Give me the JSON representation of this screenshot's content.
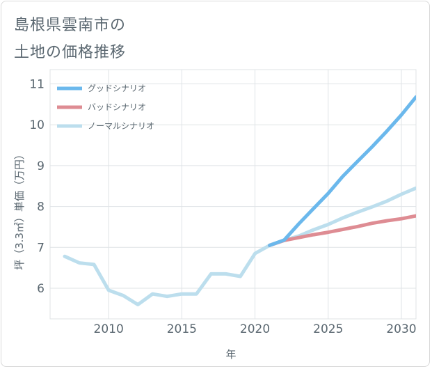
{
  "header": {
    "title_line1": "島根県雲南市の",
    "title_line2": "土地の価格推移"
  },
  "chart_data": {
    "type": "line",
    "title": "島根県雲南市の土地の価格推移",
    "xlabel": "年",
    "ylabel": "坪（3.3㎡）単価（万円）",
    "xlim": [
      2006,
      2031
    ],
    "ylim": [
      5.25,
      11.35
    ],
    "x_ticks": [
      2010,
      2015,
      2020,
      2025,
      2030
    ],
    "y_ticks": [
      6,
      7,
      8,
      9,
      10,
      11
    ],
    "grid": true,
    "legend_position": "top-left",
    "series": [
      {
        "name": "グッドシナリオ",
        "color": "#6bb8ec",
        "x": [
          2021,
          2022,
          2023,
          2024,
          2025,
          2026,
          2027,
          2028,
          2029,
          2030,
          2031
        ],
        "y": [
          7.05,
          7.18,
          7.58,
          7.95,
          8.32,
          8.74,
          9.1,
          9.46,
          9.84,
          10.24,
          10.68
        ]
      },
      {
        "name": "バッドシナリオ",
        "color": "#de8c93",
        "x": [
          2021,
          2022,
          2023,
          2024,
          2025,
          2026,
          2027,
          2028,
          2029,
          2030,
          2031
        ],
        "y": [
          7.05,
          7.17,
          7.24,
          7.31,
          7.37,
          7.44,
          7.51,
          7.59,
          7.65,
          7.7,
          7.77
        ]
      },
      {
        "name": "ノーマルシナリオ",
        "color": "#bcdeed",
        "x": [
          2007,
          2008,
          2009,
          2010,
          2011,
          2012,
          2013,
          2014,
          2015,
          2016,
          2017,
          2018,
          2019,
          2020,
          2021,
          2022,
          2023,
          2024,
          2025,
          2026,
          2027,
          2028,
          2029,
          2030,
          2031
        ],
        "y": [
          6.78,
          6.62,
          6.58,
          5.95,
          5.82,
          5.6,
          5.86,
          5.8,
          5.86,
          5.86,
          6.35,
          6.35,
          6.29,
          6.85,
          7.05,
          7.17,
          7.28,
          7.43,
          7.56,
          7.72,
          7.86,
          7.99,
          8.13,
          8.3,
          8.45
        ]
      }
    ]
  }
}
